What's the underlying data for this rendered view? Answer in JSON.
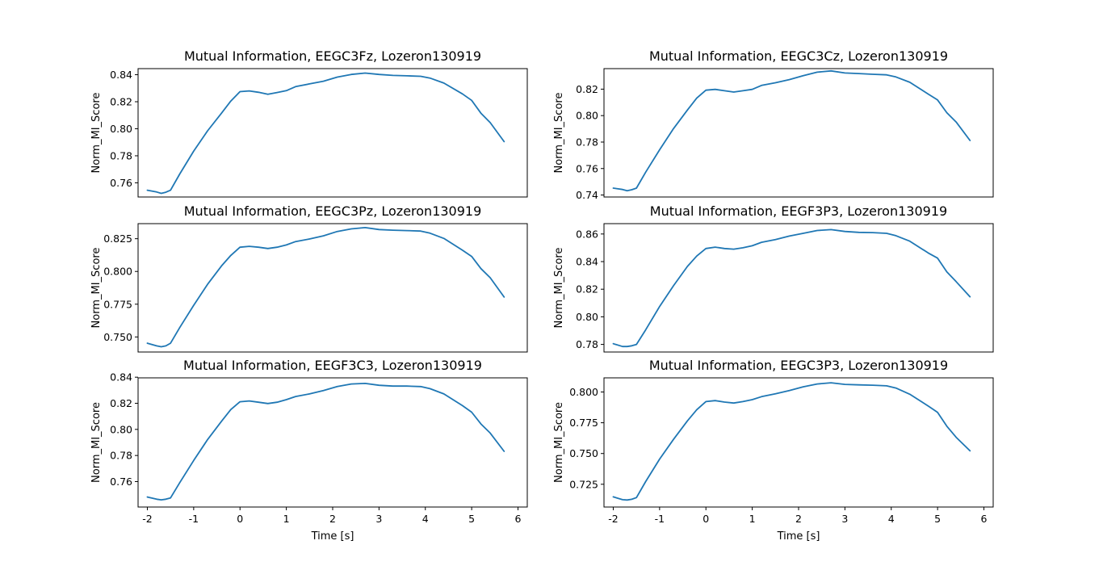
{
  "chart_data": [
    {
      "type": "line",
      "title": "Mutual Information, EEGC3Fz, Lozeron130919",
      "xlabel": "",
      "ylabel": "Norm_MI_Score",
      "xlim": [
        -2.2,
        6.2
      ],
      "ylim": [
        0.7495,
        0.8445
      ],
      "xticks": [],
      "yticks": [
        0.76,
        0.78,
        0.8,
        0.82,
        0.84
      ],
      "ytick_labels": [
        "0.76",
        "0.78",
        "0.80",
        "0.82",
        "0.84"
      ],
      "series": [
        {
          "x": [
            -2.0,
            -1.8,
            -1.7,
            -1.6,
            -1.5,
            -1.3,
            -1.0,
            -0.7,
            -0.4,
            -0.2,
            0.0,
            0.2,
            0.4,
            0.6,
            0.8,
            1.0,
            1.2,
            1.5,
            1.8,
            2.1,
            2.4,
            2.7,
            3.0,
            3.3,
            3.6,
            3.9,
            4.1,
            4.4,
            4.8,
            5.0,
            5.2,
            5.4,
            5.7
          ],
          "y": [
            0.7545,
            0.7532,
            0.7522,
            0.753,
            0.7545,
            0.7665,
            0.7835,
            0.7985,
            0.8115,
            0.8205,
            0.8275,
            0.828,
            0.827,
            0.8255,
            0.8268,
            0.8282,
            0.8312,
            0.8332,
            0.8352,
            0.8382,
            0.8402,
            0.8412,
            0.8402,
            0.8395,
            0.8392,
            0.8388,
            0.8375,
            0.8338,
            0.8258,
            0.821,
            0.8115,
            0.8045,
            0.7905
          ]
        }
      ]
    },
    {
      "type": "line",
      "title": "Mutual Information, EEGC3Cz, Lozeron130919",
      "xlabel": "",
      "ylabel": "Norm_MI_Score",
      "xlim": [
        -2.2,
        6.2
      ],
      "ylim": [
        0.7385,
        0.8355
      ],
      "xticks": [],
      "yticks": [
        0.74,
        0.76,
        0.78,
        0.8,
        0.82
      ],
      "ytick_labels": [
        "0.74",
        "0.76",
        "0.78",
        "0.80",
        "0.82"
      ],
      "series": [
        {
          "x": [
            -2.0,
            -1.8,
            -1.7,
            -1.6,
            -1.5,
            -1.3,
            -1.0,
            -0.7,
            -0.4,
            -0.2,
            0.0,
            0.2,
            0.4,
            0.6,
            0.8,
            1.0,
            1.2,
            1.5,
            1.8,
            2.1,
            2.4,
            2.7,
            3.0,
            3.3,
            3.6,
            3.9,
            4.1,
            4.4,
            4.8,
            5.0,
            5.2,
            5.4,
            5.7
          ],
          "y": [
            0.7452,
            0.7442,
            0.7432,
            0.744,
            0.7452,
            0.7572,
            0.7742,
            0.7902,
            0.8042,
            0.8132,
            0.8192,
            0.8198,
            0.8188,
            0.8178,
            0.8188,
            0.8198,
            0.8228,
            0.8248,
            0.8272,
            0.8302,
            0.8328,
            0.8338,
            0.8322,
            0.8318,
            0.8312,
            0.8308,
            0.8292,
            0.8252,
            0.8162,
            0.8118,
            0.8022,
            0.7952,
            0.7812
          ]
        }
      ]
    },
    {
      "type": "line",
      "title": "Mutual Information, EEGC3Pz, Lozeron130919",
      "xlabel": "",
      "ylabel": "Norm_MI_Score",
      "xlim": [
        -2.2,
        6.2
      ],
      "ylim": [
        0.7385,
        0.8365
      ],
      "xticks": [],
      "yticks": [
        0.75,
        0.775,
        0.8,
        0.825
      ],
      "ytick_labels": [
        "0.750",
        "0.775",
        "0.800",
        "0.825"
      ],
      "series": [
        {
          "x": [
            -2.0,
            -1.8,
            -1.7,
            -1.6,
            -1.5,
            -1.3,
            -1.0,
            -0.7,
            -0.4,
            -0.2,
            0.0,
            0.2,
            0.4,
            0.6,
            0.8,
            1.0,
            1.2,
            1.5,
            1.8,
            2.1,
            2.4,
            2.7,
            3.0,
            3.3,
            3.6,
            3.9,
            4.1,
            4.4,
            4.8,
            5.0,
            5.2,
            5.4,
            5.7
          ],
          "y": [
            0.7452,
            0.7432,
            0.7425,
            0.7432,
            0.7452,
            0.7572,
            0.7742,
            0.7902,
            0.8042,
            0.8122,
            0.8185,
            0.8192,
            0.8185,
            0.8175,
            0.8185,
            0.8202,
            0.8228,
            0.8248,
            0.8272,
            0.8305,
            0.8325,
            0.8335,
            0.832,
            0.8315,
            0.8312,
            0.8308,
            0.8292,
            0.8252,
            0.8162,
            0.8115,
            0.8022,
            0.7952,
            0.7805
          ]
        }
      ]
    },
    {
      "type": "line",
      "title": "Mutual Information, EEGF3P3, Lozeron130919",
      "xlabel": "",
      "ylabel": "Norm_MI_Score",
      "xlim": [
        -2.2,
        6.2
      ],
      "ylim": [
        0.7745,
        0.8675
      ],
      "xticks": [],
      "yticks": [
        0.78,
        0.8,
        0.82,
        0.84,
        0.86
      ],
      "ytick_labels": [
        "0.78",
        "0.80",
        "0.82",
        "0.84",
        "0.86"
      ],
      "series": [
        {
          "x": [
            -2.0,
            -1.8,
            -1.7,
            -1.6,
            -1.5,
            -1.3,
            -1.0,
            -0.7,
            -0.4,
            -0.2,
            0.0,
            0.2,
            0.4,
            0.6,
            0.8,
            1.0,
            1.2,
            1.5,
            1.8,
            2.1,
            2.4,
            2.7,
            3.0,
            3.3,
            3.6,
            3.9,
            4.1,
            4.4,
            4.8,
            5.0,
            5.2,
            5.4,
            5.7
          ],
          "y": [
            0.7805,
            0.7785,
            0.7785,
            0.779,
            0.78,
            0.7905,
            0.8075,
            0.8225,
            0.8365,
            0.844,
            0.8495,
            0.8505,
            0.8495,
            0.849,
            0.85,
            0.8515,
            0.854,
            0.856,
            0.8585,
            0.8605,
            0.8625,
            0.8632,
            0.8618,
            0.8612,
            0.861,
            0.8605,
            0.8588,
            0.8548,
            0.8462,
            0.8425,
            0.8325,
            0.8255,
            0.8145
          ]
        }
      ]
    },
    {
      "type": "line",
      "title": "Mutual Information, EEGF3C3, Lozeron130919",
      "xlabel": "Time [s]",
      "ylabel": "Norm_MI_Score",
      "xlim": [
        -2.2,
        6.2
      ],
      "ylim": [
        0.7405,
        0.8395
      ],
      "xticks": [
        -2,
        -1,
        0,
        1,
        2,
        3,
        4,
        5,
        6
      ],
      "yticks": [
        0.76,
        0.78,
        0.8,
        0.82,
        0.84
      ],
      "ytick_labels": [
        "0.76",
        "0.78",
        "0.80",
        "0.82",
        "0.84"
      ],
      "series": [
        {
          "x": [
            -2.0,
            -1.8,
            -1.7,
            -1.6,
            -1.5,
            -1.3,
            -1.0,
            -0.7,
            -0.4,
            -0.2,
            0.0,
            0.2,
            0.4,
            0.6,
            0.8,
            1.0,
            1.2,
            1.5,
            1.8,
            2.1,
            2.4,
            2.7,
            3.0,
            3.3,
            3.6,
            3.9,
            4.1,
            4.4,
            4.8,
            5.0,
            5.2,
            5.4,
            5.7
          ],
          "y": [
            0.7482,
            0.7465,
            0.746,
            0.7465,
            0.7475,
            0.7592,
            0.7762,
            0.7922,
            0.8062,
            0.8152,
            0.8212,
            0.8218,
            0.8208,
            0.8198,
            0.8208,
            0.8228,
            0.8252,
            0.8272,
            0.8298,
            0.8328,
            0.8348,
            0.8352,
            0.8338,
            0.8332,
            0.8332,
            0.8328,
            0.8312,
            0.8272,
            0.8182,
            0.8132,
            0.8042,
            0.7972,
            0.7832
          ]
        }
      ]
    },
    {
      "type": "line",
      "title": "Mutual Information, EEGC3P3, Lozeron130919",
      "xlabel": "Time [s]",
      "ylabel": "Norm_MI_Score",
      "xlim": [
        -2.2,
        6.2
      ],
      "ylim": [
        0.7065,
        0.8115
      ],
      "xticks": [
        -2,
        -1,
        0,
        1,
        2,
        3,
        4,
        5,
        6
      ],
      "yticks": [
        0.725,
        0.75,
        0.775,
        0.8
      ],
      "ytick_labels": [
        "0.725",
        "0.750",
        "0.775",
        "0.800"
      ],
      "series": [
        {
          "x": [
            -2.0,
            -1.8,
            -1.7,
            -1.6,
            -1.5,
            -1.3,
            -1.0,
            -0.7,
            -0.4,
            -0.2,
            0.0,
            0.2,
            0.4,
            0.6,
            0.8,
            1.0,
            1.2,
            1.5,
            1.8,
            2.1,
            2.4,
            2.7,
            3.0,
            3.3,
            3.6,
            3.9,
            4.1,
            4.4,
            4.8,
            5.0,
            5.2,
            5.4,
            5.7
          ],
          "y": [
            0.7148,
            0.7125,
            0.7122,
            0.7128,
            0.7142,
            0.7272,
            0.7455,
            0.7615,
            0.7765,
            0.7855,
            0.7922,
            0.793,
            0.7918,
            0.791,
            0.7922,
            0.7938,
            0.7962,
            0.7985,
            0.8012,
            0.8042,
            0.8065,
            0.8075,
            0.8062,
            0.8058,
            0.8055,
            0.805,
            0.8032,
            0.7982,
            0.7885,
            0.7835,
            0.7722,
            0.7632,
            0.7522
          ]
        }
      ]
    }
  ]
}
